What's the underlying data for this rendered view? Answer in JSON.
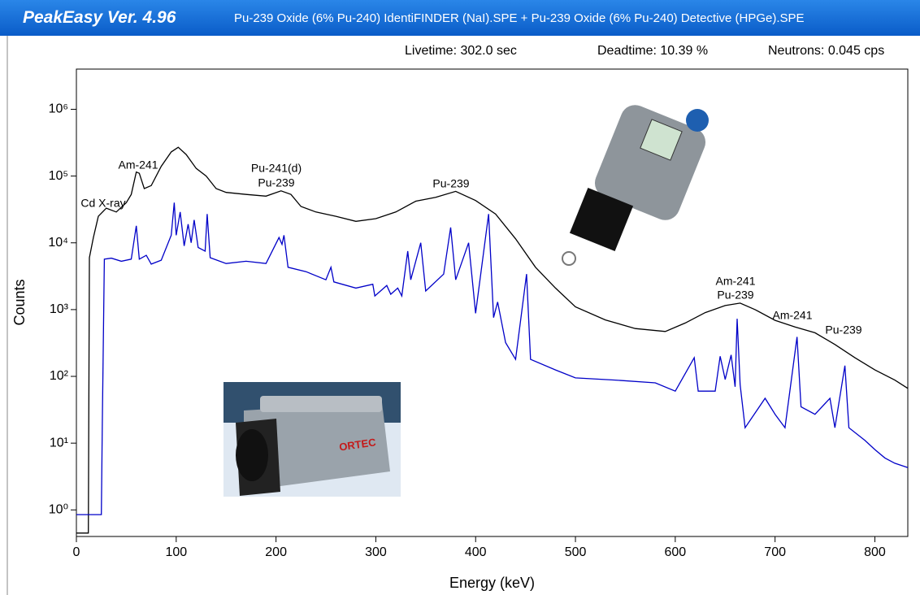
{
  "header": {
    "app_title": "PeakEasy Ver. 4.96",
    "files": "Pu-239 Oxide (6% Pu-240) IdentiFINDER (NaI).SPE  +  Pu-239 Oxide (6% Pu-240) Detective (HPGe).SPE"
  },
  "status": [
    "Livetime: 302.0 sec",
    "Deadtime: 10.39 %",
    "Neutrons: 0.045 cps"
  ],
  "chart_data": {
    "type": "line",
    "x_label": "Energy (keV)",
    "y_label": "Counts",
    "ylog": true,
    "xlim": [
      0,
      833
    ],
    "ylim": [
      0.4,
      4000000
    ],
    "xticks": [
      0,
      100,
      200,
      300,
      400,
      500,
      600,
      700,
      800
    ],
    "yticks": [
      {
        "value": 1,
        "label": "10⁰"
      },
      {
        "value": 10,
        "label": "10¹"
      },
      {
        "value": 100,
        "label": "10²"
      },
      {
        "value": 1000,
        "label": "10³"
      },
      {
        "value": 10000,
        "label": "10⁴"
      },
      {
        "value": 100000,
        "label": "10⁵"
      },
      {
        "value": 1000000,
        "label": "10⁶"
      }
    ],
    "annotations": [
      "Cd X-ray",
      "Am-241",
      "Pu-241(d)",
      "Pu-239",
      "Pu-239",
      "Am-241",
      "Pu-239",
      "Am-241",
      "Pu-239"
    ],
    "series": [
      {
        "color": "#000000",
        "x": [
          0,
          12,
          13,
          17,
          22,
          30,
          40,
          50,
          55,
          60,
          63,
          68,
          75,
          85,
          95,
          102,
          110,
          120,
          130,
          140,
          150,
          170,
          190,
          205,
          215,
          225,
          240,
          260,
          280,
          300,
          320,
          340,
          360,
          380,
          400,
          420,
          440,
          460,
          480,
          500,
          530,
          560,
          590,
          610,
          630,
          650,
          665,
          680,
          700,
          720,
          740,
          760,
          780,
          800,
          820,
          833
        ],
        "values": [
          0.45,
          0.45,
          6000,
          12000,
          25000,
          33000,
          29000,
          40000,
          53000,
          115000,
          110000,
          65000,
          72000,
          140000,
          230000,
          270000,
          210000,
          130000,
          100000,
          65000,
          57000,
          53000,
          50000,
          60000,
          53000,
          35000,
          29000,
          25000,
          21000,
          23000,
          29000,
          42000,
          48000,
          59000,
          43000,
          27000,
          11500,
          4300,
          2100,
          1100,
          700,
          520,
          470,
          630,
          900,
          1150,
          1250,
          1000,
          690,
          550,
          450,
          300,
          190,
          125,
          88,
          66
        ]
      },
      {
        "color": "#0000c8",
        "x": [
          0,
          25,
          26,
          28,
          35,
          45,
          55,
          60,
          63,
          70,
          75,
          85,
          95,
          98,
          100,
          104,
          108,
          112,
          115,
          118,
          122,
          129,
          131,
          134,
          150,
          170,
          190,
          203,
          206,
          208,
          212,
          230,
          250,
          255,
          258,
          280,
          297,
          299,
          311,
          315,
          322,
          326,
          332,
          335,
          345,
          350,
          368,
          375,
          380,
          393,
          400,
          413,
          418,
          422,
          430,
          440,
          451,
          455,
          480,
          500,
          540,
          580,
          600,
          619,
          623,
          640,
          645,
          650,
          656,
          660,
          662,
          665,
          670,
          690,
          700,
          710,
          722,
          726,
          740,
          755,
          760,
          770,
          774,
          790,
          800,
          810,
          820,
          833
        ],
        "values": [
          0.85,
          0.85,
          20,
          5700,
          5900,
          5300,
          5700,
          18000,
          5700,
          6500,
          4800,
          5500,
          13000,
          40000,
          13000,
          29000,
          9000,
          19000,
          10000,
          22000,
          8500,
          7500,
          27000,
          6000,
          4900,
          5300,
          4900,
          12000,
          9500,
          13000,
          4300,
          3700,
          2800,
          4300,
          2600,
          2100,
          2400,
          1600,
          2300,
          1700,
          2100,
          1600,
          7500,
          2800,
          10000,
          1900,
          3400,
          17000,
          2800,
          10000,
          880,
          27000,
          760,
          1300,
          320,
          180,
          3400,
          180,
          125,
          95,
          88,
          80,
          60,
          190,
          60,
          60,
          200,
          90,
          210,
          70,
          730,
          75,
          17,
          47,
          27,
          17,
          390,
          35,
          27,
          47,
          17,
          145,
          17,
          11,
          8,
          6,
          5,
          4.3
        ]
      }
    ]
  }
}
